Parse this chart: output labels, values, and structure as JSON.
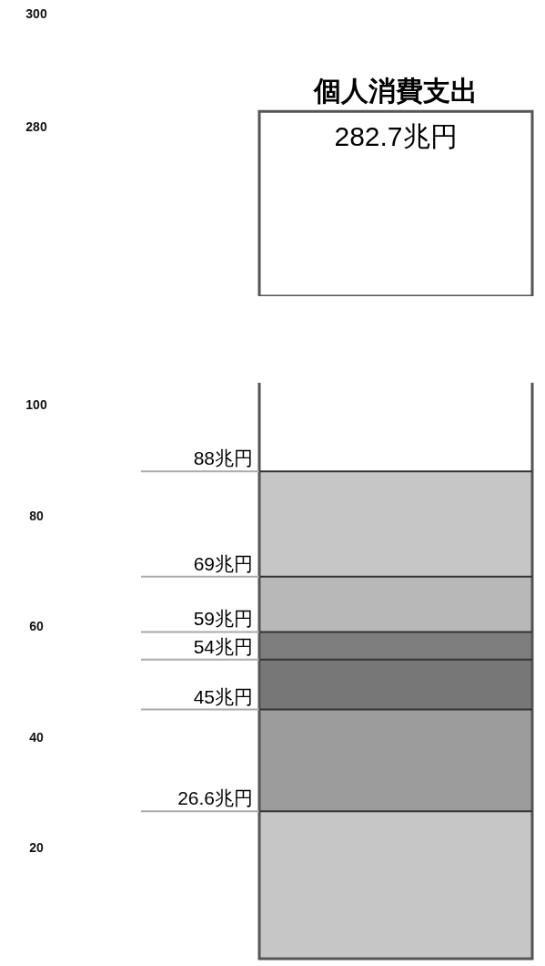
{
  "chart_data": [
    {
      "type": "bar",
      "categories": [
        null
      ],
      "values": [
        282.7
      ],
      "color": "#ffffff",
      "ylim": [
        250,
        300
      ],
      "yticks": [
        280,
        300
      ],
      "grid": false,
      "annotations": [
        "個人消費支出"
      ],
      "value_labels": [
        "282.7兆円"
      ]
    },
    {
      "type": "bar",
      "categories": [
        null
      ],
      "values": [
        null
      ],
      "ylim": [
        0,
        104
      ],
      "yticks": [
        20,
        40,
        60,
        80,
        100
      ],
      "grid": false,
      "bands": [
        {
          "axis": "y",
          "from": 0,
          "to": 26.6,
          "color": "#c6c6c6"
        },
        {
          "axis": "y",
          "from": 26.6,
          "to": 45,
          "color": "#9c9c9c"
        },
        {
          "axis": "y",
          "from": 45,
          "to": 54,
          "color": "#777777"
        },
        {
          "axis": "y",
          "from": 54,
          "to": 59,
          "color": "#7e7e7e"
        },
        {
          "axis": "y",
          "from": 59,
          "to": 69,
          "color": "#b8b8b8"
        },
        {
          "axis": "y",
          "from": 69,
          "to": 88,
          "color": "#c6c6c6"
        }
      ],
      "ref_lines": [
        {
          "axis": "y",
          "value": 88,
          "label": "88兆円"
        },
        {
          "axis": "y",
          "value": 69,
          "label": "69兆円"
        },
        {
          "axis": "y",
          "value": 59,
          "label": "59兆円"
        },
        {
          "axis": "y",
          "value": 54,
          "label": "54兆円"
        },
        {
          "axis": "y",
          "value": 45,
          "label": "45兆円"
        },
        {
          "axis": "y",
          "value": 26.6,
          "label": "26.6兆円"
        }
      ]
    }
  ]
}
